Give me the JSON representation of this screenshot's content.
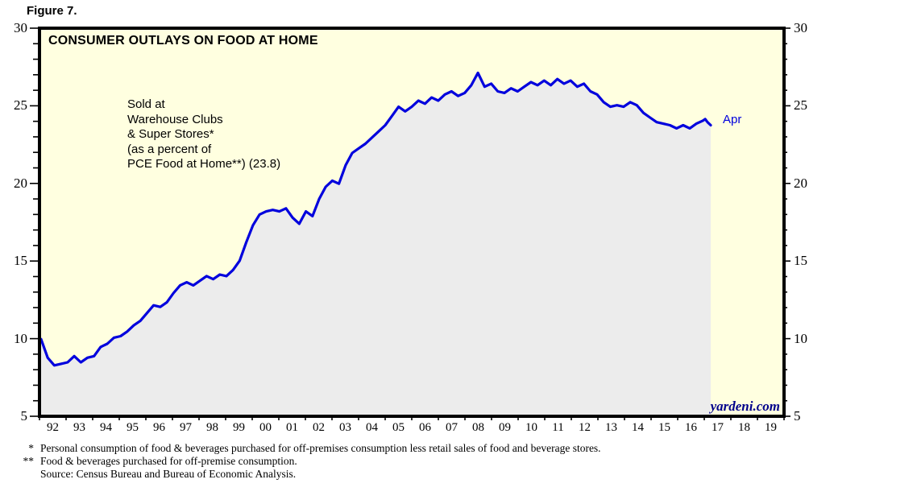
{
  "figure_label": "Figure 7.",
  "chart": {
    "title": "CONSUMER OUTLAYS ON FOOD AT HOME",
    "annotation_lines": [
      "Sold at",
      "Warehouse Clubs",
      "& Super Stores*",
      "(as a percent of",
      "PCE Food at Home**) (23.8)"
    ],
    "end_label": "Apr",
    "watermark": "yardeni.com",
    "colors": {
      "line": "#0000DD",
      "fill_under_line": "#ECECEC",
      "plot_background": "#FFFFE0",
      "watermark_text": "#00008B",
      "axis": "#000000"
    }
  },
  "footnotes": [
    {
      "marker": "*",
      "text": "Personal consumption of food & beverages purchased for off-premises consumption less retail sales of food and beverage stores."
    },
    {
      "marker": "**",
      "text": "Food & beverages purchased for off-premise consumption."
    },
    {
      "marker": "",
      "text": "Source: Census Bureau and Bureau of Economic Analysis."
    }
  ],
  "chart_data": {
    "type": "line",
    "title": "CONSUMER OUTLAYS ON FOOD AT HOME",
    "xlabel": "",
    "ylabel": "",
    "x_range": [
      1992,
      2020
    ],
    "y_range": [
      5,
      30
    ],
    "y_ticks_labeled": [
      5,
      10,
      15,
      20,
      25,
      30
    ],
    "y_minor_step": 1,
    "x_tick_labels": [
      "92",
      "93",
      "94",
      "95",
      "96",
      "97",
      "98",
      "99",
      "00",
      "01",
      "02",
      "03",
      "04",
      "05",
      "06",
      "07",
      "08",
      "09",
      "10",
      "11",
      "12",
      "13",
      "14",
      "15",
      "16",
      "17",
      "18",
      "19"
    ],
    "grid": false,
    "legend_position": "none",
    "fill_under_line": true,
    "series": [
      {
        "name": "Sold at Warehouse Clubs & Super Stores (as a percent of PCE Food at Home)",
        "latest_point_label": "Apr",
        "latest_value": 23.8,
        "points": [
          [
            1992.0,
            9.9
          ],
          [
            1992.25,
            8.7
          ],
          [
            1992.5,
            8.2
          ],
          [
            1992.75,
            8.3
          ],
          [
            1993.0,
            8.4
          ],
          [
            1993.25,
            8.8
          ],
          [
            1993.5,
            8.4
          ],
          [
            1993.75,
            8.7
          ],
          [
            1994.0,
            8.8
          ],
          [
            1994.25,
            9.4
          ],
          [
            1994.5,
            9.6
          ],
          [
            1994.75,
            10.0
          ],
          [
            1995.0,
            10.1
          ],
          [
            1995.25,
            10.4
          ],
          [
            1995.5,
            10.8
          ],
          [
            1995.75,
            11.1
          ],
          [
            1996.0,
            11.6
          ],
          [
            1996.25,
            12.1
          ],
          [
            1996.5,
            12.0
          ],
          [
            1996.75,
            12.3
          ],
          [
            1997.0,
            12.9
          ],
          [
            1997.25,
            13.4
          ],
          [
            1997.5,
            13.6
          ],
          [
            1997.75,
            13.4
          ],
          [
            1998.0,
            13.7
          ],
          [
            1998.25,
            14.0
          ],
          [
            1998.5,
            13.8
          ],
          [
            1998.75,
            14.1
          ],
          [
            1999.0,
            14.0
          ],
          [
            1999.25,
            14.4
          ],
          [
            1999.5,
            15.0
          ],
          [
            1999.75,
            16.2
          ],
          [
            2000.0,
            17.3
          ],
          [
            2000.25,
            18.0
          ],
          [
            2000.5,
            18.2
          ],
          [
            2000.75,
            18.3
          ],
          [
            2001.0,
            18.2
          ],
          [
            2001.25,
            18.4
          ],
          [
            2001.5,
            17.8
          ],
          [
            2001.75,
            17.4
          ],
          [
            2002.0,
            18.2
          ],
          [
            2002.25,
            17.9
          ],
          [
            2002.5,
            19.0
          ],
          [
            2002.75,
            19.8
          ],
          [
            2003.0,
            20.2
          ],
          [
            2003.25,
            20.0
          ],
          [
            2003.5,
            21.2
          ],
          [
            2003.75,
            22.0
          ],
          [
            2004.0,
            22.3
          ],
          [
            2004.25,
            22.6
          ],
          [
            2004.5,
            23.0
          ],
          [
            2004.75,
            23.4
          ],
          [
            2005.0,
            23.8
          ],
          [
            2005.25,
            24.4
          ],
          [
            2005.5,
            25.0
          ],
          [
            2005.75,
            24.7
          ],
          [
            2006.0,
            25.0
          ],
          [
            2006.25,
            25.4
          ],
          [
            2006.5,
            25.2
          ],
          [
            2006.75,
            25.6
          ],
          [
            2007.0,
            25.4
          ],
          [
            2007.25,
            25.8
          ],
          [
            2007.5,
            26.0
          ],
          [
            2007.75,
            25.7
          ],
          [
            2008.0,
            25.9
          ],
          [
            2008.25,
            26.4
          ],
          [
            2008.5,
            27.2
          ],
          [
            2008.75,
            26.3
          ],
          [
            2009.0,
            26.5
          ],
          [
            2009.25,
            26.0
          ],
          [
            2009.5,
            25.9
          ],
          [
            2009.75,
            26.2
          ],
          [
            2010.0,
            26.0
          ],
          [
            2010.25,
            26.3
          ],
          [
            2010.5,
            26.6
          ],
          [
            2010.75,
            26.4
          ],
          [
            2011.0,
            26.7
          ],
          [
            2011.25,
            26.4
          ],
          [
            2011.5,
            26.8
          ],
          [
            2011.75,
            26.5
          ],
          [
            2012.0,
            26.7
          ],
          [
            2012.25,
            26.3
          ],
          [
            2012.5,
            26.5
          ],
          [
            2012.75,
            26.0
          ],
          [
            2013.0,
            25.8
          ],
          [
            2013.25,
            25.3
          ],
          [
            2013.5,
            25.0
          ],
          [
            2013.75,
            25.1
          ],
          [
            2014.0,
            25.0
          ],
          [
            2014.25,
            25.3
          ],
          [
            2014.5,
            25.1
          ],
          [
            2014.75,
            24.6
          ],
          [
            2015.0,
            24.3
          ],
          [
            2015.25,
            24.0
          ],
          [
            2015.5,
            23.9
          ],
          [
            2015.75,
            23.8
          ],
          [
            2016.0,
            23.6
          ],
          [
            2016.25,
            23.8
          ],
          [
            2016.5,
            23.6
          ],
          [
            2016.75,
            23.9
          ],
          [
            2017.0,
            24.1
          ],
          [
            2017.08,
            24.2
          ],
          [
            2017.17,
            24.0
          ],
          [
            2017.29,
            23.8
          ]
        ]
      }
    ]
  }
}
